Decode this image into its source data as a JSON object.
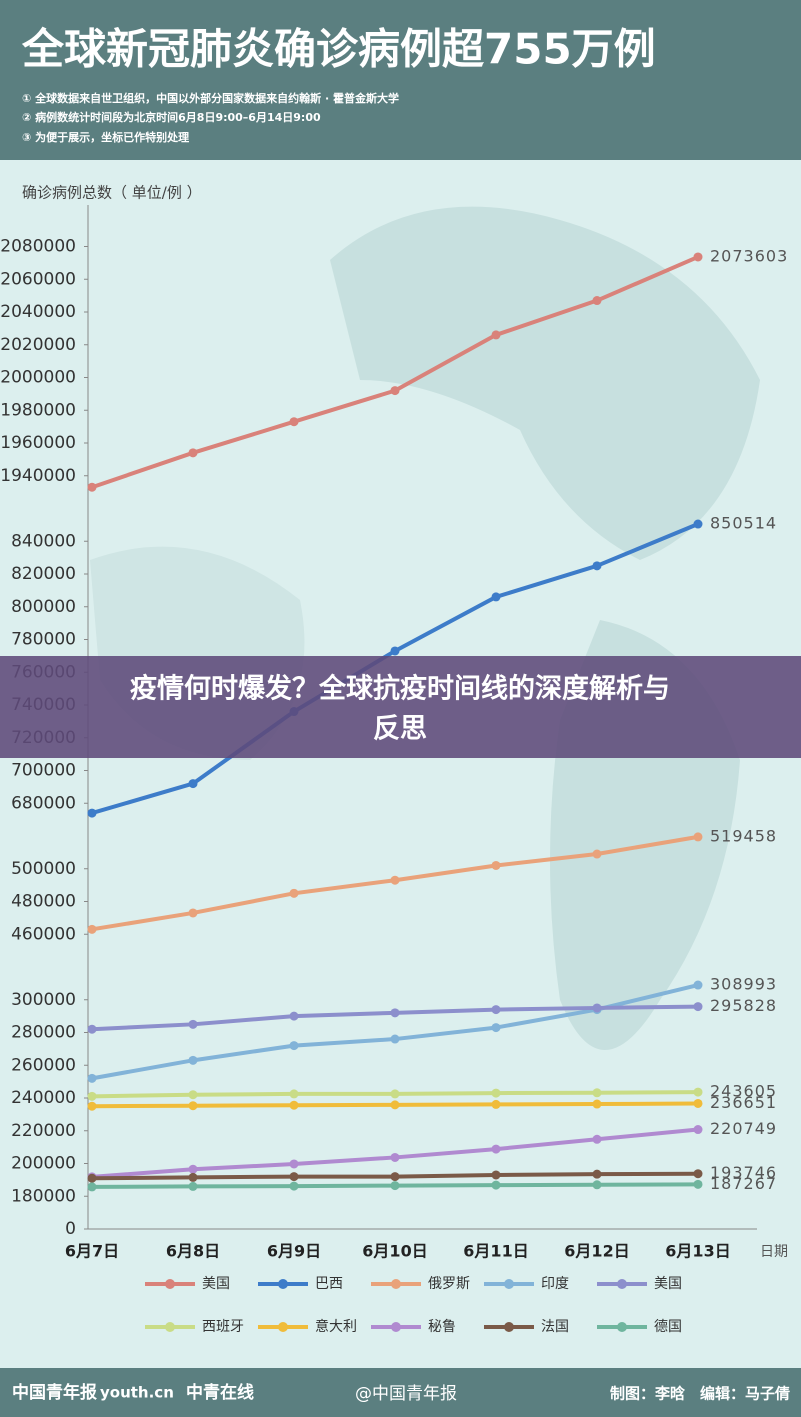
{
  "header": {
    "title": "全球新冠肺炎确诊病例超755万例",
    "notes": [
      "① 全球数据来自世卫组织，中国以外部分国家数据来自约翰斯 · 霍普金斯大学",
      "② 病例数统计时间段为北京时间6月8日9:00–6月14日9:00",
      "③ 为便于展示，坐标已作特别处理"
    ]
  },
  "chart_data": {
    "type": "line",
    "y_label": "确诊病例总数（ 单位/例 ）",
    "x_label": "日期",
    "categories": [
      "6月7日",
      "6月8日",
      "6月9日",
      "6月10日",
      "6月11日",
      "6月12日",
      "6月13日"
    ],
    "yticks": [
      0,
      180000,
      200000,
      220000,
      240000,
      260000,
      280000,
      300000,
      460000,
      480000,
      500000,
      680000,
      700000,
      720000,
      740000,
      760000,
      780000,
      800000,
      820000,
      840000,
      1940000,
      1960000,
      1980000,
      2000000,
      2020000,
      2040000,
      2060000,
      2080000
    ],
    "series": [
      {
        "name": "美国",
        "color": "#d9827a",
        "values": [
          1933000,
          1954000,
          1973000,
          1992000,
          2026000,
          2047000,
          2073603
        ]
      },
      {
        "name": "巴西",
        "color": "#3d7cc9",
        "values": [
          674000,
          692000,
          736000,
          773000,
          806000,
          825000,
          850514
        ]
      },
      {
        "name": "俄罗斯",
        "color": "#e9a27a",
        "values": [
          463000,
          473000,
          485000,
          493000,
          502000,
          509000,
          519458
        ]
      },
      {
        "name": "印度",
        "color": "#82b3d8",
        "values": [
          252000,
          263000,
          272000,
          276000,
          283000,
          294000,
          308993
        ]
      },
      {
        "name": "美国",
        "color": "#8c8fcc",
        "values": [
          282000,
          285000,
          290000,
          292000,
          294000,
          295000,
          295828
        ]
      },
      {
        "name": "西班牙",
        "color": "#c9dc86",
        "values": [
          241000,
          242000,
          242500,
          242500,
          243000,
          243200,
          243605
        ]
      },
      {
        "name": "意大利",
        "color": "#f0bc3a",
        "values": [
          235000,
          235300,
          235600,
          235800,
          236100,
          236300,
          236651
        ]
      },
      {
        "name": "秘鲁",
        "color": "#b08ad0",
        "values": [
          191800,
          196500,
          199700,
          203700,
          208800,
          214800,
          220749
        ]
      },
      {
        "name": "法国",
        "color": "#7a5a48",
        "values": [
          191000,
          191500,
          192000,
          192000,
          193000,
          193500,
          193746
        ]
      },
      {
        "name": "德国",
        "color": "#6fb59e",
        "values": [
          185700,
          186000,
          186200,
          186500,
          186800,
          187000,
          187267
        ]
      }
    ]
  },
  "banner": {
    "text": [
      "疫情何时爆发？全球抗疫时间线的深度解析与",
      "反思"
    ]
  },
  "footer": {
    "logos": [
      "中国青年报",
      "youth.cn",
      "中青在线"
    ],
    "weibo": "@中国青年报",
    "credits": "制图：李晗　编辑：马子倩"
  }
}
